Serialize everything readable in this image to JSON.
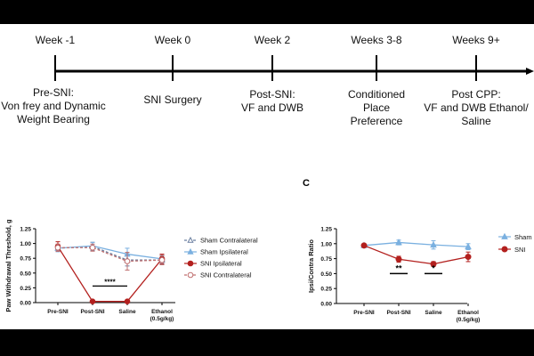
{
  "timeline": {
    "weeks": [
      {
        "label": "Week -1",
        "desc": "Pre-SNI:\nVon frey and Dynamic\nWeight Bearing"
      },
      {
        "label": "Week 0",
        "desc": "SNI Surgery"
      },
      {
        "label": "Week 2",
        "desc": "Post-SNI:\nVF and DWB"
      },
      {
        "label": "Weeks 3-8",
        "desc": "Conditioned\nPlace\nPreference"
      },
      {
        "label": "Weeks 9+",
        "desc": "Post CPP:\nVF and DWB Ethanol/\nSaline"
      }
    ]
  },
  "panel_c_letter": "C",
  "colors": {
    "sham": "#6a9fd0",
    "sni": "#b3201e",
    "axis": "#000000"
  },
  "chart_data": [
    {
      "type": "line",
      "ylabel": "Paw Withdrawal Threshold, g",
      "xlabel": "",
      "categories": [
        "Pre-SNI",
        "Post-SNI",
        "Saline",
        "Ethanol\n(0.5g/kg)"
      ],
      "ylim": [
        0,
        1.25
      ],
      "yticks": [
        "0.00",
        "0.25",
        "0.50",
        "0.75",
        "1.00",
        "1.25"
      ],
      "series": [
        {
          "name": "Sham Contralateral",
          "values": [
            0.92,
            0.95,
            0.72,
            0.72
          ],
          "errors": [
            0.05,
            0.07,
            0.1,
            0.07
          ],
          "color": "#6a7fa0",
          "dashed": true,
          "marker": "triangle-open"
        },
        {
          "name": "Sham Ipsilateral",
          "values": [
            0.92,
            0.96,
            0.82,
            0.74
          ],
          "errors": [
            0.06,
            0.06,
            0.1,
            0.06
          ],
          "color": "#7ab0e0",
          "dashed": false,
          "marker": "triangle-filled"
        },
        {
          "name": "SNI Ipsilateral",
          "values": [
            0.95,
            0.02,
            0.02,
            0.74
          ],
          "errors": [
            0.08,
            0.01,
            0.01,
            0.08
          ],
          "color": "#b3201e",
          "dashed": false,
          "marker": "circle-filled"
        },
        {
          "name": "SNI Contralateral",
          "values": [
            0.93,
            0.93,
            0.7,
            0.72
          ],
          "errors": [
            0.06,
            0.06,
            0.15,
            0.08
          ],
          "color": "#c07070",
          "dashed": true,
          "marker": "circle-open"
        }
      ],
      "annotations": [
        {
          "text": "****",
          "from": "Post-SNI",
          "to": "Saline"
        }
      ]
    },
    {
      "type": "line",
      "ylabel": "Ipsi/Contra Ratio",
      "xlabel": "",
      "categories": [
        "Pre-SNI",
        "Post-SNI",
        "Saline",
        "Ethanol\n(0.5g/kg)"
      ],
      "ylim": [
        0,
        1.25
      ],
      "yticks": [
        "0.00",
        "0.25",
        "0.50",
        "0.75",
        "1.00",
        "1.25"
      ],
      "series": [
        {
          "name": "Sham",
          "values": [
            0.97,
            1.02,
            0.98,
            0.95
          ],
          "errors": [
            0.02,
            0.04,
            0.07,
            0.05
          ],
          "color": "#7ab0e0",
          "marker": "triangle-filled"
        },
        {
          "name": "SNI",
          "values": [
            0.97,
            0.74,
            0.66,
            0.78
          ],
          "errors": [
            0.02,
            0.05,
            0.04,
            0.08
          ],
          "color": "#b3201e",
          "marker": "circle-filled"
        }
      ],
      "annotations": [
        {
          "text": "**",
          "at": "Post-SNI"
        },
        {
          "text": "*",
          "at": "Saline"
        }
      ]
    }
  ]
}
